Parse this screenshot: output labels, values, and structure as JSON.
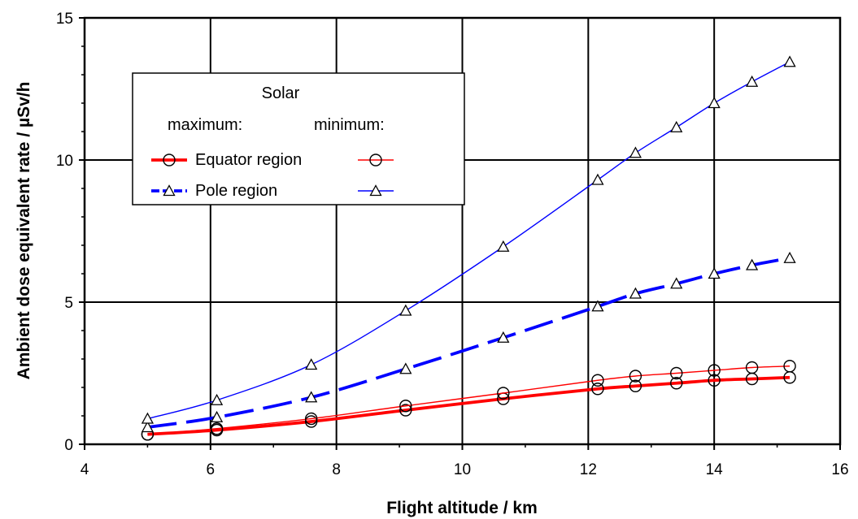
{
  "chart_data": {
    "type": "line",
    "xlabel": "Flight altitude / km",
    "ylabel": "Ambient dose equivalent rate / µSv/h",
    "xlim": [
      4,
      16
    ],
    "ylim": [
      0,
      15
    ],
    "xticks": [
      "4",
      "6",
      "8",
      "10",
      "12",
      "14",
      "16"
    ],
    "yticks": [
      "0",
      "5",
      "10",
      "15"
    ],
    "grid": true,
    "legend": {
      "placement": "top-left",
      "header": "Solar",
      "col_max": "maximum:",
      "col_min": "minimum:",
      "rows": [
        "Equator region",
        "Pole region"
      ]
    },
    "series": [
      {
        "region": "Equator region",
        "solar": "maximum",
        "color": "#ff0000",
        "marker": "circle",
        "line": "thick-solid",
        "x": [
          5.0,
          6.1,
          7.6,
          9.1,
          10.65,
          12.15,
          12.75,
          13.4,
          14.0,
          14.6,
          15.2
        ],
        "y": [
          0.35,
          0.5,
          0.8,
          1.2,
          1.6,
          1.95,
          2.05,
          2.15,
          2.25,
          2.3,
          2.35
        ]
      },
      {
        "region": "Equator region",
        "solar": "minimum",
        "color": "#ff0000",
        "marker": "circle",
        "line": "thin-solid",
        "x": [
          5.0,
          6.1,
          7.6,
          9.1,
          10.65,
          12.15,
          12.75,
          13.4,
          14.0,
          14.6,
          15.2
        ],
        "y": [
          0.35,
          0.55,
          0.9,
          1.35,
          1.8,
          2.25,
          2.4,
          2.5,
          2.6,
          2.7,
          2.75
        ]
      },
      {
        "region": "Pole region",
        "solar": "maximum",
        "color": "#0000ff",
        "marker": "triangle",
        "line": "thick-dashed",
        "x": [
          5.0,
          6.1,
          7.6,
          9.1,
          10.65,
          12.15,
          12.75,
          13.4,
          14.0,
          14.6,
          15.2
        ],
        "y": [
          0.6,
          0.95,
          1.65,
          2.65,
          3.75,
          4.85,
          5.3,
          5.65,
          6.0,
          6.3,
          6.55
        ]
      },
      {
        "region": "Pole region",
        "solar": "minimum",
        "color": "#0000ff",
        "marker": "triangle",
        "line": "thin-solid",
        "x": [
          5.0,
          6.1,
          7.6,
          9.1,
          10.65,
          12.15,
          12.75,
          13.4,
          14.0,
          14.6,
          15.2
        ],
        "y": [
          0.9,
          1.55,
          2.8,
          4.7,
          6.95,
          9.3,
          10.25,
          11.15,
          12.0,
          12.75,
          13.45
        ]
      }
    ]
  }
}
